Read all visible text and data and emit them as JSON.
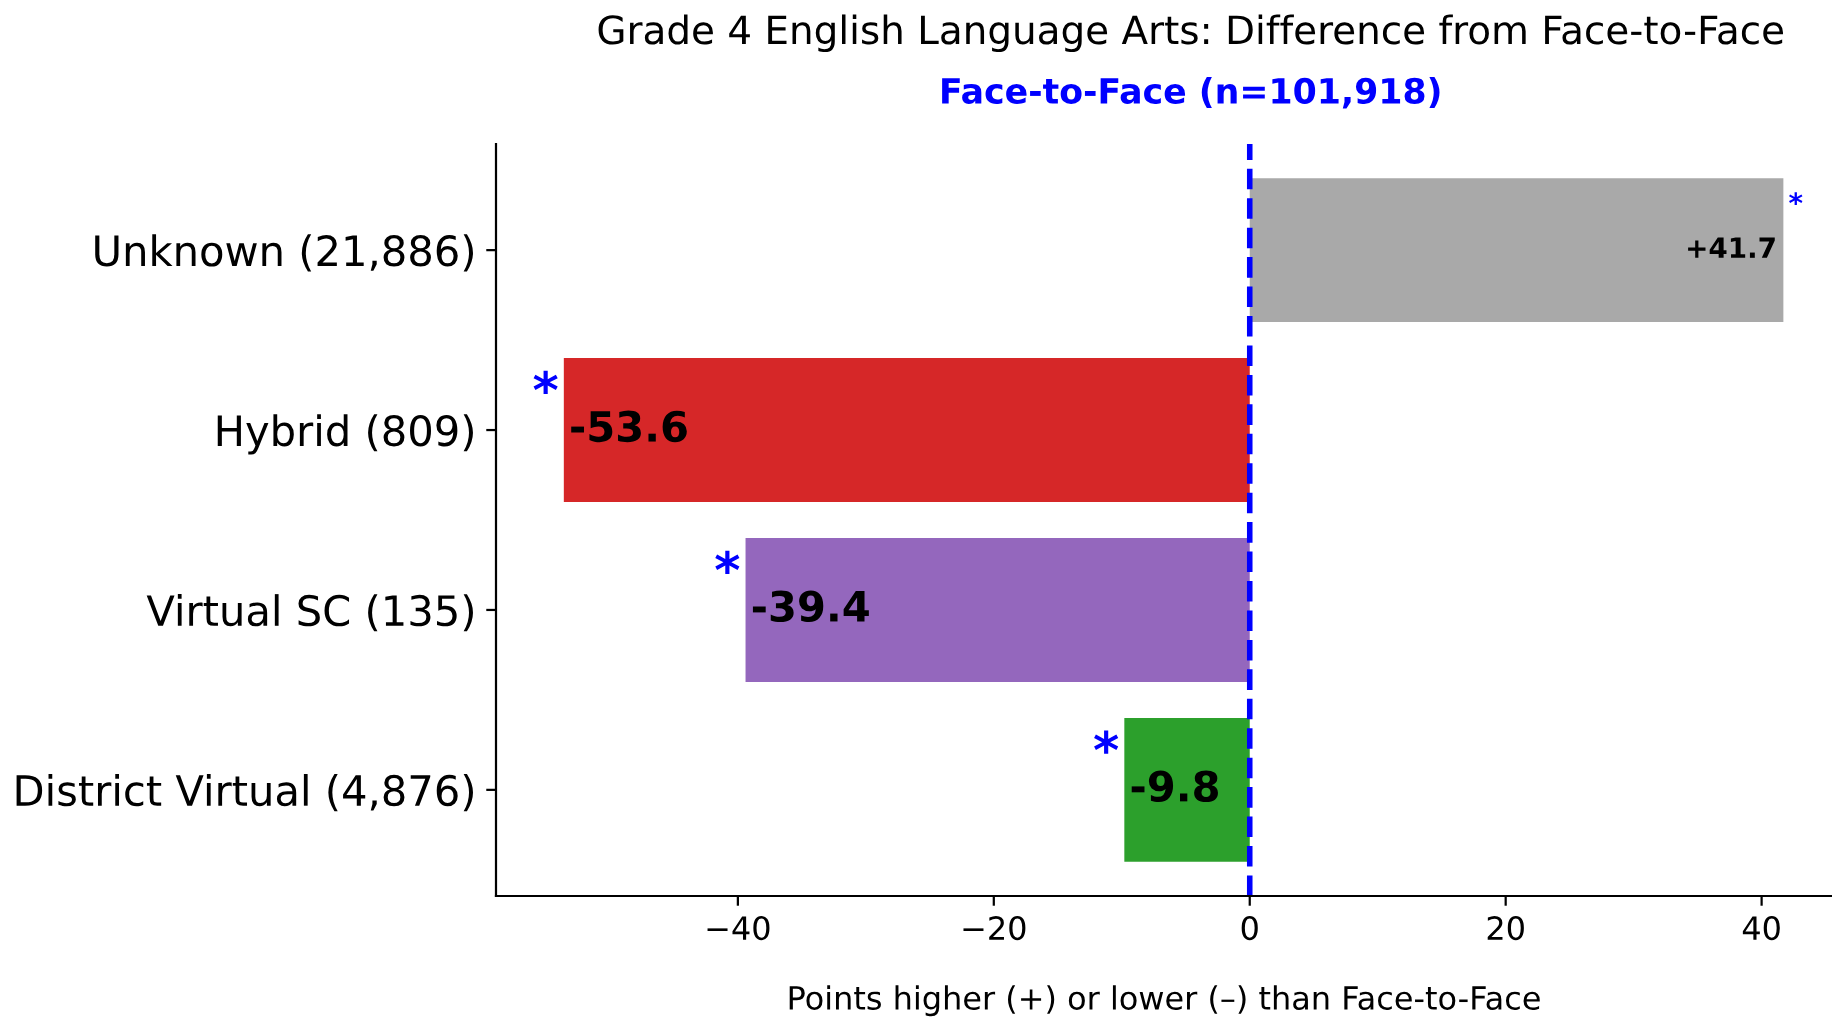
{
  "chart_data": {
    "type": "bar",
    "orientation": "horizontal",
    "title": "Grade 4 English Language Arts: Difference from Face-to-Face",
    "subtitle": "Face-to-Face (n=101,918)",
    "xlabel": "Points higher (+) or lower (–) than Face-to-Face",
    "categories": [
      "Unknown (21,886)",
      "Hybrid (809)",
      "Virtual SC (135)",
      "District Virtual (4,876)"
    ],
    "values": [
      41.7,
      -53.6,
      -39.4,
      -9.8
    ],
    "colors": [
      "#a9a9a9",
      "#d62728",
      "#9467bd",
      "#2ca02c"
    ],
    "value_labels": [
      "+41.7",
      "-53.6",
      "-39.4",
      "-9.8"
    ],
    "xlim": [
      -58.9,
      45.5
    ],
    "xticks": [
      {
        "value": -40,
        "label": "−40"
      },
      {
        "value": -20,
        "label": "−20"
      },
      0,
      20,
      40
    ],
    "ref_lines": [
      {
        "axis": "x",
        "value": 0,
        "color": "#0000ff",
        "line_style": "dashed"
      }
    ],
    "annotations": [
      {
        "text": "*",
        "x": 41.7,
        "y": "Unknown (21,886)"
      },
      {
        "text": "*",
        "x": -53.6,
        "y": "Hybrid (809)"
      },
      {
        "text": "*",
        "x": -39.4,
        "y": "Virtual SC (135)"
      },
      {
        "text": "*",
        "x": -9.8,
        "y": "District Virtual (4,876)"
      }
    ],
    "grid": false
  }
}
